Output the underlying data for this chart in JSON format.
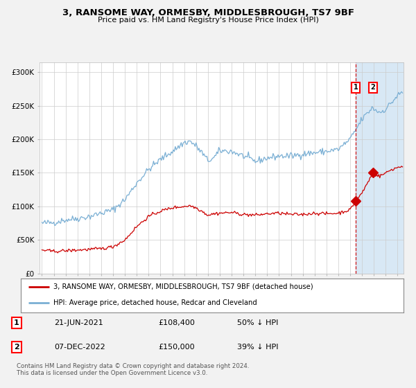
{
  "title_line1": "3, RANSOME WAY, ORMESBY, MIDDLESBROUGH, TS7 9BF",
  "title_line2": "Price paid vs. HM Land Registry's House Price Index (HPI)",
  "ylabel_ticks": [
    "£0",
    "£50K",
    "£100K",
    "£150K",
    "£200K",
    "£250K",
    "£300K"
  ],
  "ytick_vals": [
    0,
    50000,
    100000,
    150000,
    200000,
    250000,
    300000
  ],
  "ylim": [
    0,
    315000
  ],
  "xlim_start": 1994.8,
  "xlim_end": 2025.5,
  "hpi_color": "#7aafd4",
  "price_color": "#cc0000",
  "sale1_date": 2021.47,
  "sale1_price": 108400,
  "sale1_label": "1",
  "sale2_date": 2022.92,
  "sale2_price": 150000,
  "sale2_label": "2",
  "dashed_line_x": 2021.47,
  "shade_start": 2021.47,
  "shade_end": 2025.5,
  "legend_line1": "3, RANSOME WAY, ORMESBY, MIDDLESBROUGH, TS7 9BF (detached house)",
  "legend_line2": "HPI: Average price, detached house, Redcar and Cleveland",
  "table_row1": [
    "1",
    "21-JUN-2021",
    "£108,400",
    "50% ↓ HPI"
  ],
  "table_row2": [
    "2",
    "07-DEC-2022",
    "£150,000",
    "39% ↓ HPI"
  ],
  "footnote": "Contains HM Land Registry data © Crown copyright and database right 2024.\nThis data is licensed under the Open Government Licence v3.0.",
  "background_color": "#f2f2f2",
  "plot_bg_color": "#ffffff",
  "shade_color": "#d8e8f5",
  "grid_color": "#cccccc",
  "hpi_waypoints_t": [
    1995.0,
    1996.0,
    1997.0,
    1998.0,
    1999.0,
    2000.0,
    2001.0,
    2002.0,
    2003.0,
    2004.0,
    2005.0,
    2006.0,
    2007.0,
    2007.5,
    2008.0,
    2008.5,
    2009.0,
    2009.5,
    2010.0,
    2011.0,
    2012.0,
    2013.0,
    2014.0,
    2015.0,
    2016.0,
    2017.0,
    2018.0,
    2019.0,
    2020.0,
    2021.0,
    2021.5,
    2022.0,
    2022.92,
    2023.0,
    2023.5,
    2024.0,
    2024.5,
    2025.0,
    2025.4
  ],
  "hpi_waypoints_v": [
    75000,
    76000,
    80000,
    82000,
    85000,
    90000,
    95000,
    110000,
    135000,
    155000,
    170000,
    182000,
    195000,
    197000,
    190000,
    180000,
    168000,
    172000,
    183000,
    182000,
    175000,
    167000,
    172000,
    175000,
    175000,
    178000,
    180000,
    182000,
    185000,
    200000,
    215000,
    230000,
    248000,
    245000,
    240000,
    245000,
    255000,
    265000,
    270000
  ],
  "price_waypoints_t": [
    1995.0,
    1996.0,
    1997.0,
    1998.0,
    1999.0,
    2000.0,
    2001.0,
    2002.0,
    2003.0,
    2004.0,
    2005.0,
    2006.0,
    2007.0,
    2007.5,
    2008.0,
    2008.5,
    2009.0,
    2009.5,
    2010.0,
    2011.0,
    2012.0,
    2013.0,
    2014.0,
    2015.0,
    2016.0,
    2017.0,
    2018.0,
    2019.0,
    2020.0,
    2021.0,
    2021.47,
    2022.0,
    2022.92,
    2023.0,
    2023.5,
    2024.0,
    2024.5,
    2025.0,
    2025.4
  ],
  "price_waypoints_v": [
    35000,
    33000,
    34000,
    35000,
    36000,
    37000,
    40000,
    50000,
    70000,
    85000,
    93000,
    98000,
    100000,
    101000,
    98000,
    93000,
    87000,
    89000,
    90000,
    91000,
    88000,
    87000,
    89000,
    90000,
    88000,
    88000,
    90000,
    89000,
    90000,
    95000,
    108400,
    120000,
    150000,
    148000,
    145000,
    150000,
    155000,
    158000,
    160000
  ]
}
